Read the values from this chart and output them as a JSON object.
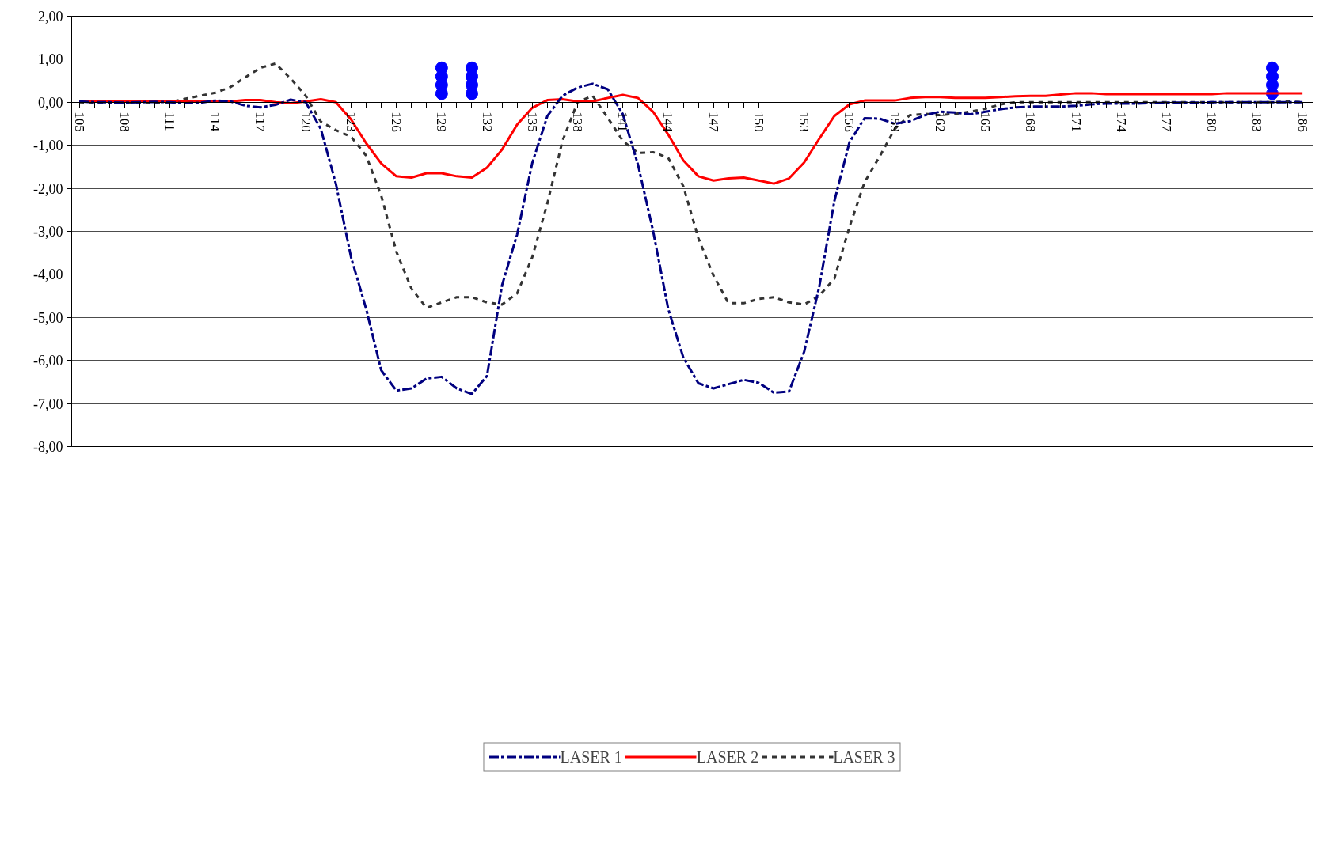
{
  "chart_data": {
    "type": "line",
    "x": [
      105,
      106,
      107,
      108,
      109,
      110,
      111,
      112,
      113,
      114,
      115,
      116,
      117,
      118,
      119,
      120,
      121,
      122,
      123,
      124,
      125,
      126,
      127,
      128,
      129,
      130,
      131,
      132,
      133,
      134,
      135,
      136,
      137,
      138,
      139,
      140,
      141,
      142,
      143,
      144,
      145,
      146,
      147,
      148,
      149,
      150,
      151,
      152,
      153,
      154,
      155,
      156,
      157,
      158,
      159,
      160,
      161,
      162,
      163,
      164,
      165,
      166,
      167,
      168,
      169,
      170,
      171,
      172,
      173,
      174,
      175,
      176,
      177,
      178,
      179,
      180,
      181,
      182,
      183,
      184,
      185,
      186
    ],
    "xlim": [
      104.5,
      186.7
    ],
    "xticks": [
      105,
      {
        "value": 106,
        "label": null
      },
      {
        "value": 107,
        "label": null
      },
      108,
      {
        "value": 109,
        "label": null
      },
      {
        "value": 110,
        "label": null
      },
      111,
      {
        "value": 112,
        "label": null
      },
      {
        "value": 113,
        "label": null
      },
      114,
      {
        "value": 115,
        "label": null
      },
      {
        "value": 116,
        "label": null
      },
      117,
      {
        "value": 118,
        "label": null
      },
      {
        "value": 119,
        "label": null
      },
      120,
      {
        "value": 121,
        "label": null
      },
      {
        "value": 122,
        "label": null
      },
      123,
      {
        "value": 124,
        "label": null
      },
      {
        "value": 125,
        "label": null
      },
      126,
      {
        "value": 127,
        "label": null
      },
      {
        "value": 128,
        "label": null
      },
      129,
      {
        "value": 130,
        "label": null
      },
      {
        "value": 131,
        "label": null
      },
      132,
      {
        "value": 133,
        "label": null
      },
      {
        "value": 134,
        "label": null
      },
      135,
      {
        "value": 136,
        "label": null
      },
      {
        "value": 137,
        "label": null
      },
      138,
      {
        "value": 139,
        "label": null
      },
      {
        "value": 140,
        "label": null
      },
      141,
      {
        "value": 142,
        "label": null
      },
      {
        "value": 143,
        "label": null
      },
      144,
      {
        "value": 145,
        "label": null
      },
      {
        "value": 146,
        "label": null
      },
      147,
      {
        "value": 148,
        "label": null
      },
      {
        "value": 149,
        "label": null
      },
      150,
      {
        "value": 151,
        "label": null
      },
      {
        "value": 152,
        "label": null
      },
      153,
      {
        "value": 154,
        "label": null
      },
      {
        "value": 155,
        "label": null
      },
      156,
      {
        "value": 157,
        "label": null
      },
      {
        "value": 158,
        "label": null
      },
      159,
      {
        "value": 160,
        "label": null
      },
      {
        "value": 161,
        "label": null
      },
      162,
      {
        "value": 163,
        "label": null
      },
      {
        "value": 164,
        "label": null
      },
      165,
      {
        "value": 166,
        "label": null
      },
      {
        "value": 167,
        "label": null
      },
      168,
      {
        "value": 169,
        "label": null
      },
      {
        "value": 170,
        "label": null
      },
      171,
      {
        "value": 172,
        "label": null
      },
      {
        "value": 173,
        "label": null
      },
      174,
      {
        "value": 175,
        "label": null
      },
      {
        "value": 176,
        "label": null
      },
      177,
      {
        "value": 178,
        "label": null
      },
      {
        "value": 179,
        "label": null
      },
      180,
      {
        "value": 181,
        "label": null
      },
      {
        "value": 182,
        "label": null
      },
      183,
      {
        "value": 184,
        "label": null
      },
      {
        "value": 185,
        "label": null
      },
      186
    ],
    "ylim": [
      -8,
      2
    ],
    "yticks": [
      {
        "value": -8,
        "label": "-8,00"
      },
      {
        "value": -7,
        "label": "-7,00"
      },
      {
        "value": -6,
        "label": "-6,00"
      },
      {
        "value": -5,
        "label": "-5,00"
      },
      {
        "value": -4,
        "label": "-4,00"
      },
      {
        "value": -3,
        "label": "-3,00"
      },
      {
        "value": -2,
        "label": "-2,00"
      },
      {
        "value": -1,
        "label": "-1,00"
      },
      {
        "value": 0,
        "label": "0,00"
      },
      {
        "value": 1,
        "label": "1,00"
      },
      {
        "value": 2,
        "label": "2,00"
      }
    ],
    "grid": "y",
    "legend": "bottom",
    "series": [
      {
        "name": "LASER 1",
        "color": "#000080",
        "line_style": "dashed",
        "marker": "none",
        "values": [
          0.02,
          0.0,
          0.0,
          -0.01,
          0.0,
          0.01,
          0.0,
          -0.02,
          -0.01,
          0.04,
          0.02,
          -0.08,
          -0.12,
          -0.06,
          0.06,
          0.0,
          -0.62,
          -1.9,
          -3.6,
          -4.8,
          -6.23,
          -6.7,
          -6.65,
          -6.42,
          -6.38,
          -6.65,
          -6.78,
          -6.36,
          -4.25,
          -3.07,
          -1.41,
          -0.32,
          0.15,
          0.34,
          0.43,
          0.3,
          -0.28,
          -1.45,
          -2.99,
          -4.8,
          -5.93,
          -6.53,
          -6.65,
          -6.55,
          -6.45,
          -6.52,
          -6.75,
          -6.72,
          -5.8,
          -4.29,
          -2.3,
          -0.93,
          -0.37,
          -0.38,
          -0.5,
          -0.44,
          -0.3,
          -0.22,
          -0.24,
          -0.28,
          -0.22,
          -0.16,
          -0.12,
          -0.1,
          -0.1,
          -0.1,
          -0.08,
          -0.05,
          -0.03,
          -0.03,
          -0.03,
          -0.02,
          -0.01,
          -0.01,
          -0.01,
          0.0,
          0.0,
          0.0,
          0.0,
          0.0,
          0.0,
          0.0
        ]
      },
      {
        "name": "LASER 2",
        "color": "#ff0000",
        "line_style": "solid",
        "marker": "none",
        "values": [
          0.03,
          0.02,
          0.02,
          0.02,
          0.02,
          0.02,
          0.02,
          0.02,
          0.02,
          0.02,
          0.02,
          0.05,
          0.05,
          0.0,
          -0.02,
          0.02,
          0.07,
          0.0,
          -0.4,
          -0.95,
          -1.42,
          -1.72,
          -1.75,
          -1.65,
          -1.65,
          -1.72,
          -1.75,
          -1.52,
          -1.1,
          -0.52,
          -0.13,
          0.05,
          0.07,
          0.02,
          0.02,
          0.1,
          0.17,
          0.1,
          -0.22,
          -0.75,
          -1.35,
          -1.72,
          -1.82,
          -1.77,
          -1.75,
          -1.82,
          -1.89,
          -1.77,
          -1.4,
          -0.85,
          -0.32,
          -0.05,
          0.04,
          0.04,
          0.04,
          0.1,
          0.12,
          0.12,
          0.1,
          0.1,
          0.1,
          0.12,
          0.14,
          0.15,
          0.15,
          0.18,
          0.21,
          0.21,
          0.19,
          0.19,
          0.19,
          0.19,
          0.19,
          0.19,
          0.19,
          0.19,
          0.21,
          0.21,
          0.21,
          0.21,
          0.21,
          0.21
        ]
      },
      {
        "name": "LASER 3",
        "color": "#333333",
        "line_style": "dotted",
        "marker": "none",
        "values": [
          0.0,
          -0.01,
          -0.01,
          -0.01,
          -0.01,
          -0.02,
          0.0,
          0.08,
          0.15,
          0.22,
          0.35,
          0.58,
          0.8,
          0.9,
          0.55,
          0.15,
          -0.45,
          -0.65,
          -0.8,
          -1.24,
          -2.17,
          -3.47,
          -4.33,
          -4.78,
          -4.65,
          -4.53,
          -4.53,
          -4.65,
          -4.7,
          -4.44,
          -3.6,
          -2.35,
          -0.9,
          0.0,
          0.15,
          -0.36,
          -0.9,
          -1.18,
          -1.16,
          -1.29,
          -1.95,
          -3.16,
          -4.03,
          -4.67,
          -4.67,
          -4.57,
          -4.53,
          -4.65,
          -4.7,
          -4.5,
          -4.1,
          -2.9,
          -1.86,
          -1.26,
          -0.62,
          -0.3,
          -0.27,
          -0.3,
          -0.27,
          -0.22,
          -0.15,
          -0.05,
          0.0,
          0.0,
          0.0,
          0.0,
          0.0,
          0.0,
          0.0,
          0.0,
          0.0,
          0.0,
          0.0,
          0.0,
          0.0,
          0.0,
          0.0,
          0.0,
          0.0,
          0.0,
          0.02,
          0.0
        ]
      },
      {
        "color": "#0000ff",
        "type": "scatter",
        "marker": "circle",
        "x": [
          129,
          129,
          129,
          129
        ],
        "values": [
          0.8,
          0.6,
          0.4,
          0.2
        ]
      },
      {
        "color": "#0000ff",
        "type": "scatter",
        "marker": "circle",
        "x": [
          131,
          131,
          131,
          131
        ],
        "values": [
          0.8,
          0.6,
          0.4,
          0.2
        ]
      },
      {
        "color": "#0000ff",
        "type": "scatter",
        "marker": "circle",
        "x": [
          184,
          184,
          184,
          184
        ],
        "values": [
          0.8,
          0.6,
          0.4,
          0.2
        ]
      }
    ]
  }
}
